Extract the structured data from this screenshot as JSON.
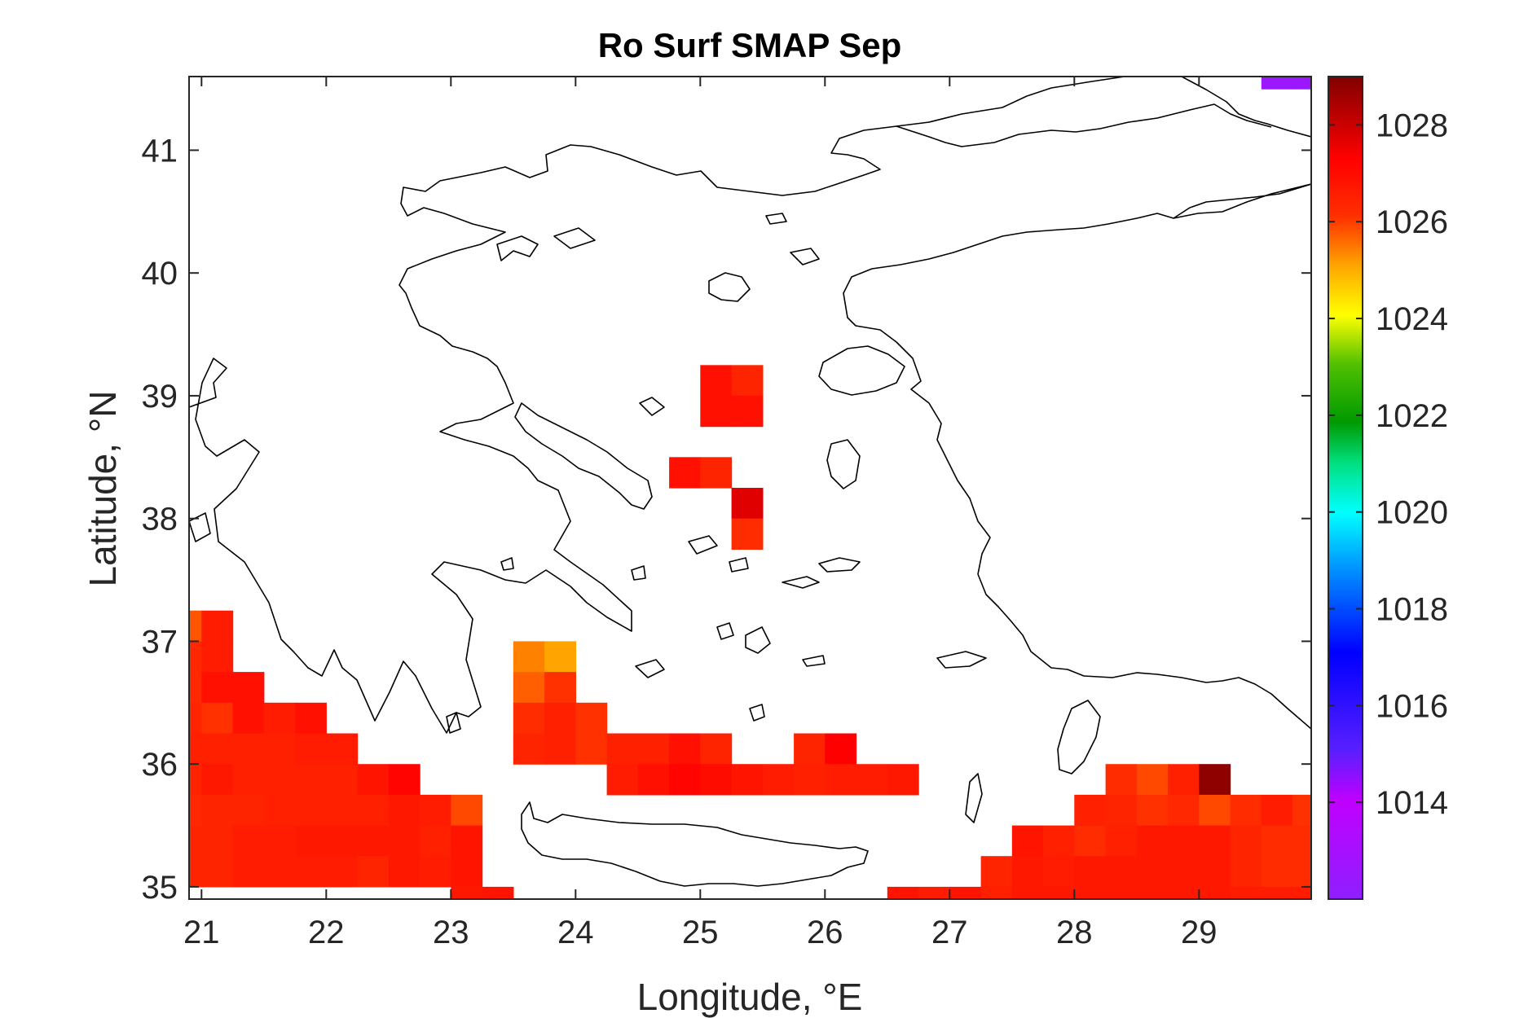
{
  "chart_data": {
    "type": "heatmap",
    "title": "Ro Surf SMAP Sep",
    "xlabel": "Longitude, °E",
    "ylabel": "Latitude, °N",
    "xlim": [
      20.9,
      29.9
    ],
    "ylim": [
      34.9,
      41.6
    ],
    "xticks": [
      21,
      22,
      23,
      24,
      25,
      26,
      27,
      28,
      29
    ],
    "yticks": [
      35,
      36,
      37,
      38,
      39,
      40,
      41
    ],
    "colorbar": {
      "range": [
        1012,
        1029
      ],
      "ticks": [
        1014,
        1016,
        1018,
        1020,
        1022,
        1024,
        1026,
        1028
      ],
      "colormap": "jet-like"
    },
    "grid": false,
    "cell_size_deg": 0.25,
    "cells": [
      {
        "lon": 20.875,
        "lat": 37.125,
        "v": 1025.8
      },
      {
        "lon": 20.875,
        "lat": 36.875,
        "v": 1026.3
      },
      {
        "lon": 20.875,
        "lat": 36.625,
        "v": 1026.3
      },
      {
        "lon": 20.875,
        "lat": 36.375,
        "v": 1026.4
      },
      {
        "lon": 20.875,
        "lat": 36.125,
        "v": 1026.5
      },
      {
        "lon": 20.875,
        "lat": 35.875,
        "v": 1026.4
      },
      {
        "lon": 20.875,
        "lat": 35.625,
        "v": 1026.3
      },
      {
        "lon": 20.875,
        "lat": 35.375,
        "v": 1026.4
      },
      {
        "lon": 20.875,
        "lat": 35.125,
        "v": 1026.4
      },
      {
        "lon": 21.125,
        "lat": 37.125,
        "v": 1026.6
      },
      {
        "lon": 21.125,
        "lat": 36.875,
        "v": 1026.6
      },
      {
        "lon": 21.125,
        "lat": 36.625,
        "v": 1026.9
      },
      {
        "lon": 21.125,
        "lat": 36.375,
        "v": 1026.1
      },
      {
        "lon": 21.125,
        "lat": 36.125,
        "v": 1026.5
      },
      {
        "lon": 21.125,
        "lat": 35.875,
        "v": 1026.7
      },
      {
        "lon": 21.125,
        "lat": 35.625,
        "v": 1026.4
      },
      {
        "lon": 21.125,
        "lat": 35.375,
        "v": 1026.4
      },
      {
        "lon": 21.125,
        "lat": 35.125,
        "v": 1026.4
      },
      {
        "lon": 21.375,
        "lat": 36.625,
        "v": 1026.9
      },
      {
        "lon": 21.375,
        "lat": 36.375,
        "v": 1026.9
      },
      {
        "lon": 21.375,
        "lat": 36.125,
        "v": 1026.5
      },
      {
        "lon": 21.375,
        "lat": 35.875,
        "v": 1026.5
      },
      {
        "lon": 21.375,
        "lat": 35.625,
        "v": 1026.4
      },
      {
        "lon": 21.375,
        "lat": 35.375,
        "v": 1026.6
      },
      {
        "lon": 21.375,
        "lat": 35.125,
        "v": 1026.6
      },
      {
        "lon": 21.625,
        "lat": 36.375,
        "v": 1026.6
      },
      {
        "lon": 21.625,
        "lat": 36.125,
        "v": 1026.5
      },
      {
        "lon": 21.625,
        "lat": 35.875,
        "v": 1026.5
      },
      {
        "lon": 21.625,
        "lat": 35.625,
        "v": 1026.5
      },
      {
        "lon": 21.625,
        "lat": 35.375,
        "v": 1026.6
      },
      {
        "lon": 21.625,
        "lat": 35.125,
        "v": 1026.6
      },
      {
        "lon": 21.875,
        "lat": 36.375,
        "v": 1026.9
      },
      {
        "lon": 21.875,
        "lat": 36.125,
        "v": 1026.6
      },
      {
        "lon": 21.875,
        "lat": 35.875,
        "v": 1026.5
      },
      {
        "lon": 21.875,
        "lat": 35.625,
        "v": 1026.5
      },
      {
        "lon": 21.875,
        "lat": 35.375,
        "v": 1026.7
      },
      {
        "lon": 21.875,
        "lat": 35.125,
        "v": 1026.6
      },
      {
        "lon": 22.125,
        "lat": 36.125,
        "v": 1026.6
      },
      {
        "lon": 22.125,
        "lat": 35.875,
        "v": 1026.5
      },
      {
        "lon": 22.125,
        "lat": 35.625,
        "v": 1026.5
      },
      {
        "lon": 22.125,
        "lat": 35.375,
        "v": 1026.7
      },
      {
        "lon": 22.125,
        "lat": 35.125,
        "v": 1026.6
      },
      {
        "lon": 22.375,
        "lat": 35.875,
        "v": 1026.8
      },
      {
        "lon": 22.375,
        "lat": 35.625,
        "v": 1026.5
      },
      {
        "lon": 22.375,
        "lat": 35.375,
        "v": 1026.7
      },
      {
        "lon": 22.375,
        "lat": 35.125,
        "v": 1026.4
      },
      {
        "lon": 22.625,
        "lat": 35.875,
        "v": 1027.2
      },
      {
        "lon": 22.625,
        "lat": 35.625,
        "v": 1026.7
      },
      {
        "lon": 22.625,
        "lat": 35.375,
        "v": 1026.7
      },
      {
        "lon": 22.625,
        "lat": 35.125,
        "v": 1026.7
      },
      {
        "lon": 22.875,
        "lat": 35.625,
        "v": 1026.6
      },
      {
        "lon": 22.875,
        "lat": 35.375,
        "v": 1026.5
      },
      {
        "lon": 22.875,
        "lat": 35.125,
        "v": 1026.6
      },
      {
        "lon": 23.125,
        "lat": 35.625,
        "v": 1025.9
      },
      {
        "lon": 23.125,
        "lat": 35.375,
        "v": 1026.8
      },
      {
        "lon": 23.125,
        "lat": 35.125,
        "v": 1026.8
      },
      {
        "lon": 23.125,
        "lat": 34.875,
        "v": 1026.7
      },
      {
        "lon": 23.375,
        "lat": 34.875,
        "v": 1026.8
      },
      {
        "lon": 23.625,
        "lat": 36.875,
        "v": 1025.4
      },
      {
        "lon": 23.625,
        "lat": 36.625,
        "v": 1025.7
      },
      {
        "lon": 23.625,
        "lat": 36.375,
        "v": 1026.2
      },
      {
        "lon": 23.625,
        "lat": 36.125,
        "v": 1026.4
      },
      {
        "lon": 23.875,
        "lat": 36.875,
        "v": 1025.1
      },
      {
        "lon": 23.875,
        "lat": 36.625,
        "v": 1026.1
      },
      {
        "lon": 23.875,
        "lat": 36.375,
        "v": 1026.5
      },
      {
        "lon": 23.875,
        "lat": 36.125,
        "v": 1026.5
      },
      {
        "lon": 24.125,
        "lat": 36.375,
        "v": 1026.1
      },
      {
        "lon": 24.125,
        "lat": 36.125,
        "v": 1026.1
      },
      {
        "lon": 24.375,
        "lat": 36.125,
        "v": 1026.5
      },
      {
        "lon": 24.375,
        "lat": 35.875,
        "v": 1026.6
      },
      {
        "lon": 24.625,
        "lat": 36.125,
        "v": 1026.5
      },
      {
        "lon": 24.625,
        "lat": 35.875,
        "v": 1026.9
      },
      {
        "lon": 24.875,
        "lat": 36.125,
        "v": 1026.9
      },
      {
        "lon": 24.875,
        "lat": 35.875,
        "v": 1027.2
      },
      {
        "lon": 25.125,
        "lat": 36.125,
        "v": 1026.4
      },
      {
        "lon": 25.125,
        "lat": 35.875,
        "v": 1027.0
      },
      {
        "lon": 25.375,
        "lat": 35.875,
        "v": 1026.8
      },
      {
        "lon": 25.625,
        "lat": 35.875,
        "v": 1026.6
      },
      {
        "lon": 25.875,
        "lat": 36.125,
        "v": 1026.4
      },
      {
        "lon": 25.875,
        "lat": 35.875,
        "v": 1026.5
      },
      {
        "lon": 26.125,
        "lat": 36.125,
        "v": 1027.3
      },
      {
        "lon": 26.125,
        "lat": 35.875,
        "v": 1026.6
      },
      {
        "lon": 26.375,
        "lat": 35.875,
        "v": 1026.6
      },
      {
        "lon": 26.625,
        "lat": 35.875,
        "v": 1026.7
      },
      {
        "lon": 24.875,
        "lat": 38.375,
        "v": 1026.9
      },
      {
        "lon": 25.125,
        "lat": 38.375,
        "v": 1026.4
      },
      {
        "lon": 25.125,
        "lat": 39.125,
        "v": 1026.9
      },
      {
        "lon": 25.375,
        "lat": 39.125,
        "v": 1026.4
      },
      {
        "lon": 25.125,
        "lat": 38.875,
        "v": 1026.9
      },
      {
        "lon": 25.375,
        "lat": 38.875,
        "v": 1026.9
      },
      {
        "lon": 25.375,
        "lat": 38.125,
        "v": 1027.7
      },
      {
        "lon": 25.375,
        "lat": 37.875,
        "v": 1026.2
      },
      {
        "lon": 26.625,
        "lat": 34.875,
        "v": 1026.8
      },
      {
        "lon": 26.875,
        "lat": 34.875,
        "v": 1026.6
      },
      {
        "lon": 27.125,
        "lat": 34.875,
        "v": 1026.8
      },
      {
        "lon": 27.375,
        "lat": 35.125,
        "v": 1026.4
      },
      {
        "lon": 27.375,
        "lat": 34.875,
        "v": 1026.5
      },
      {
        "lon": 27.625,
        "lat": 35.375,
        "v": 1026.8
      },
      {
        "lon": 27.625,
        "lat": 35.125,
        "v": 1026.7
      },
      {
        "lon": 27.625,
        "lat": 34.875,
        "v": 1026.7
      },
      {
        "lon": 27.875,
        "lat": 35.375,
        "v": 1026.5
      },
      {
        "lon": 27.875,
        "lat": 35.125,
        "v": 1026.6
      },
      {
        "lon": 27.875,
        "lat": 34.875,
        "v": 1026.7
      },
      {
        "lon": 28.125,
        "lat": 35.625,
        "v": 1026.5
      },
      {
        "lon": 28.125,
        "lat": 35.375,
        "v": 1026.2
      },
      {
        "lon": 28.125,
        "lat": 35.125,
        "v": 1026.7
      },
      {
        "lon": 28.125,
        "lat": 34.875,
        "v": 1026.7
      },
      {
        "lon": 28.375,
        "lat": 35.875,
        "v": 1026.2
      },
      {
        "lon": 28.375,
        "lat": 35.625,
        "v": 1026.4
      },
      {
        "lon": 28.375,
        "lat": 35.375,
        "v": 1026.5
      },
      {
        "lon": 28.375,
        "lat": 35.125,
        "v": 1026.7
      },
      {
        "lon": 28.375,
        "lat": 34.875,
        "v": 1026.7
      },
      {
        "lon": 28.625,
        "lat": 35.875,
        "v": 1025.9
      },
      {
        "lon": 28.625,
        "lat": 35.625,
        "v": 1026.1
      },
      {
        "lon": 28.625,
        "lat": 35.375,
        "v": 1026.7
      },
      {
        "lon": 28.625,
        "lat": 35.125,
        "v": 1026.7
      },
      {
        "lon": 28.625,
        "lat": 34.875,
        "v": 1026.7
      },
      {
        "lon": 28.875,
        "lat": 35.875,
        "v": 1026.5
      },
      {
        "lon": 28.875,
        "lat": 35.625,
        "v": 1026.3
      },
      {
        "lon": 28.875,
        "lat": 35.375,
        "v": 1026.7
      },
      {
        "lon": 28.875,
        "lat": 35.125,
        "v": 1026.7
      },
      {
        "lon": 28.875,
        "lat": 34.875,
        "v": 1026.7
      },
      {
        "lon": 29.125,
        "lat": 35.875,
        "v": 1028.8
      },
      {
        "lon": 29.125,
        "lat": 35.625,
        "v": 1025.9
      },
      {
        "lon": 29.125,
        "lat": 35.375,
        "v": 1026.7
      },
      {
        "lon": 29.125,
        "lat": 35.125,
        "v": 1026.7
      },
      {
        "lon": 29.125,
        "lat": 34.875,
        "v": 1026.7
      },
      {
        "lon": 29.375,
        "lat": 35.625,
        "v": 1026.2
      },
      {
        "lon": 29.375,
        "lat": 35.375,
        "v": 1026.4
      },
      {
        "lon": 29.375,
        "lat": 35.125,
        "v": 1026.4
      },
      {
        "lon": 29.375,
        "lat": 34.875,
        "v": 1026.6
      },
      {
        "lon": 29.625,
        "lat": 35.625,
        "v": 1026.6
      },
      {
        "lon": 29.625,
        "lat": 35.375,
        "v": 1026.2
      },
      {
        "lon": 29.625,
        "lat": 35.125,
        "v": 1026.2
      },
      {
        "lon": 29.625,
        "lat": 34.875,
        "v": 1026.6
      },
      {
        "lon": 29.875,
        "lat": 35.625,
        "v": 1026.1
      },
      {
        "lon": 29.875,
        "lat": 35.375,
        "v": 1026.2
      },
      {
        "lon": 29.875,
        "lat": 35.125,
        "v": 1026.2
      },
      {
        "lon": 29.875,
        "lat": 34.875,
        "v": 1026.6
      },
      {
        "lon": 29.625,
        "lat": 41.625,
        "v": 1012.5
      },
      {
        "lon": 29.875,
        "lat": 41.625,
        "v": 1012.5
      }
    ]
  }
}
